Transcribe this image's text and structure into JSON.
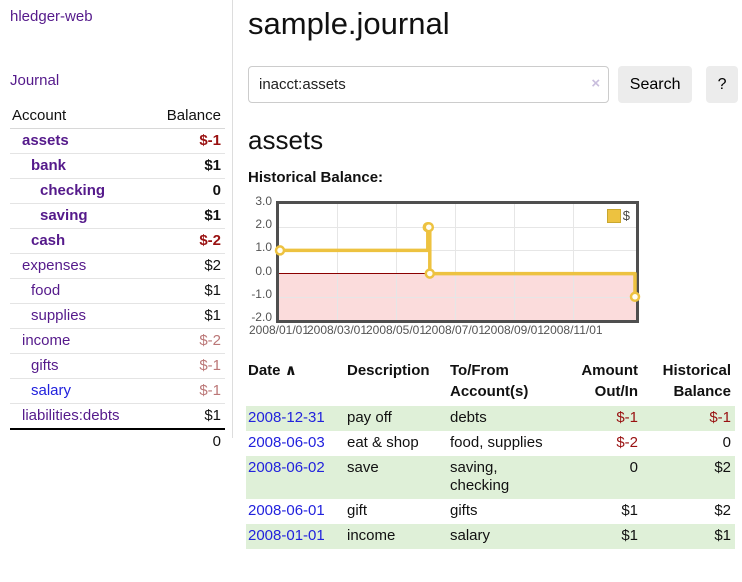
{
  "app": {
    "title": "hledger-web"
  },
  "sidebar": {
    "journal_link": "Journal",
    "accounts_table": {
      "col_account": "Account",
      "col_balance": "Balance",
      "rows": [
        {
          "name": "assets",
          "balance": "$-1",
          "depth": 1,
          "bold": true,
          "neg": "strong"
        },
        {
          "name": "bank",
          "balance": "$1",
          "depth": 2,
          "bold": true,
          "neg": "none"
        },
        {
          "name": "checking",
          "balance": "0",
          "depth": 3,
          "bold": true,
          "neg": "none"
        },
        {
          "name": "saving",
          "balance": "$1",
          "depth": 3,
          "bold": true,
          "neg": "none"
        },
        {
          "name": "cash",
          "balance": "$-2",
          "depth": 2,
          "bold": true,
          "neg": "strong"
        },
        {
          "name": "expenses",
          "balance": "$2",
          "depth": 1,
          "bold": false,
          "neg": "none"
        },
        {
          "name": "food",
          "balance": "$1",
          "depth": 2,
          "bold": false,
          "neg": "none"
        },
        {
          "name": "supplies",
          "balance": "$1",
          "depth": 2,
          "bold": false,
          "neg": "none"
        },
        {
          "name": "income",
          "balance": "$-2",
          "depth": 1,
          "bold": false,
          "neg": "muted"
        },
        {
          "name": "gifts",
          "balance": "$-1",
          "depth": 2,
          "bold": false,
          "neg": "muted"
        },
        {
          "name": "salary",
          "balance": "$-1",
          "depth": 2,
          "bold": false,
          "neg": "muted"
        },
        {
          "name": "liabilities:debts",
          "balance": "$1",
          "depth": 1,
          "bold": false,
          "neg": "none"
        }
      ],
      "total": "0"
    }
  },
  "header": {
    "title": "sample.journal"
  },
  "search": {
    "query": "inacct:assets",
    "clear_icon": "×",
    "button_label": "Search",
    "help_label": "?"
  },
  "account_page": {
    "title": "assets",
    "chart_label": "Historical Balance:"
  },
  "chart_data": {
    "type": "line",
    "line_style": "step",
    "title": "Historical Balance",
    "series": [
      {
        "name": "$",
        "color": "#edc240",
        "points": [
          [
            "2008-01-01",
            1
          ],
          [
            "2008-06-01",
            2
          ],
          [
            "2008-06-02",
            2
          ],
          [
            "2008-06-03",
            0
          ],
          [
            "2008-12-31",
            -1
          ]
        ]
      }
    ],
    "x_range": [
      "2008-01-01",
      "2008-12-31"
    ],
    "ylim": [
      -2,
      3
    ],
    "y_ticks": [
      "3.0",
      "2.0",
      "1.0",
      "0.0",
      "-1.0",
      "-2.0"
    ],
    "x_ticks": [
      "2008/01/01",
      "2008/03/01",
      "2008/05/01",
      "2008/07/01",
      "2008/09/01",
      "2008/11/01"
    ],
    "legend_position": "top-right",
    "grid": true,
    "negative_region_shaded": true
  },
  "register": {
    "sort_icon": "∧",
    "headers": {
      "date": "Date",
      "description": "Description",
      "accounts": "To/From Account(s)",
      "amount": "Amount Out/In",
      "balance": "Historical Balance"
    },
    "rows": [
      {
        "date": "2008-12-31",
        "description": "pay off",
        "accounts": "debts",
        "amount": "$-1",
        "balance": "$-1"
      },
      {
        "date": "2008-06-03",
        "description": "eat & shop",
        "accounts": "food, supplies",
        "amount": "$-2",
        "balance": "0"
      },
      {
        "date": "2008-06-02",
        "description": "save",
        "accounts": "saving,\nchecking",
        "amount": "0",
        "balance": "$2"
      },
      {
        "date": "2008-06-01",
        "description": "gift",
        "accounts": "gifts",
        "amount": "$1",
        "balance": "$2"
      },
      {
        "date": "2008-01-01",
        "description": "income",
        "accounts": "salary",
        "amount": "$1",
        "balance": "$1"
      }
    ]
  },
  "colors": {
    "link_purple": "#551a8b",
    "link_blue": "#2222dd",
    "negative_strong": "#991111",
    "negative_muted": "#bb7777",
    "row_green": "#dff0d8",
    "chart_line": "#edc240",
    "chart_negative_fill": "#fbdcdc",
    "zero_line": "#8b0000",
    "button_gray": "#ececec"
  }
}
